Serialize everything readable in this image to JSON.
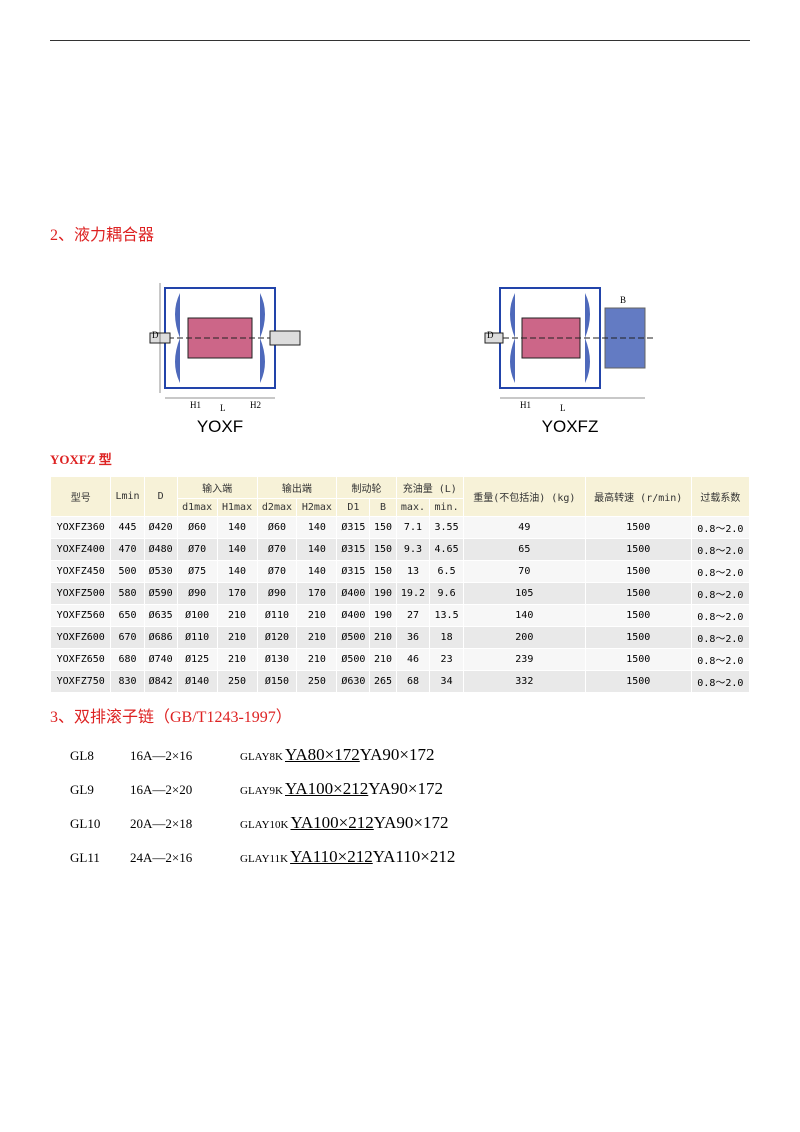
{
  "section2": {
    "title": "2、液力耦合器",
    "diagrams": {
      "left_label": "YOXF",
      "right_label": "YOXFZ",
      "colors": {
        "outline": "#2244aa",
        "inner": "#cc6688",
        "line": "#222"
      }
    },
    "sub_label": "YOXFZ 型",
    "table": {
      "headers": {
        "model": "型号",
        "lmin": "Lmin",
        "d": "D",
        "input": "输入端",
        "output": "输出端",
        "brake": "制动轮",
        "oil": "充油量 (L)",
        "weight": "重量(不包括油) (kg)",
        "speed": "最高转速 (r/min)",
        "overload": "过载系数",
        "d1max": "d1max",
        "H1max": "H1max",
        "d2max": "d2max",
        "H2max": "H2max",
        "D1": "D1",
        "B": "B",
        "oilmax": "max.",
        "oilmin": "min."
      },
      "rows": [
        {
          "m": "YOXFZ360",
          "l": "445",
          "d": "Ø420",
          "d1": "Ø60",
          "h1": "140",
          "d2": "Ø60",
          "h2": "140",
          "D1": "Ø315",
          "B": "150",
          "omax": "7.1",
          "omin": "3.55",
          "kg": "49",
          "sp": "1500",
          "ov": "0.8～2.0"
        },
        {
          "m": "YOXFZ400",
          "l": "470",
          "d": "Ø480",
          "d1": "Ø70",
          "h1": "140",
          "d2": "Ø70",
          "h2": "140",
          "D1": "Ø315",
          "B": "150",
          "omax": "9.3",
          "omin": "4.65",
          "kg": "65",
          "sp": "1500",
          "ov": "0.8～2.0"
        },
        {
          "m": "YOXFZ450",
          "l": "500",
          "d": "Ø530",
          "d1": "Ø75",
          "h1": "140",
          "d2": "Ø70",
          "h2": "140",
          "D1": "Ø315",
          "B": "150",
          "omax": "13",
          "omin": "6.5",
          "kg": "70",
          "sp": "1500",
          "ov": "0.8～2.0"
        },
        {
          "m": "YOXFZ500",
          "l": "580",
          "d": "Ø590",
          "d1": "Ø90",
          "h1": "170",
          "d2": "Ø90",
          "h2": "170",
          "D1": "Ø400",
          "B": "190",
          "omax": "19.2",
          "omin": "9.6",
          "kg": "105",
          "sp": "1500",
          "ov": "0.8～2.0"
        },
        {
          "m": "YOXFZ560",
          "l": "650",
          "d": "Ø635",
          "d1": "Ø100",
          "h1": "210",
          "d2": "Ø110",
          "h2": "210",
          "D1": "Ø400",
          "B": "190",
          "omax": "27",
          "omin": "13.5",
          "kg": "140",
          "sp": "1500",
          "ov": "0.8～2.0"
        },
        {
          "m": "YOXFZ600",
          "l": "670",
          "d": "Ø686",
          "d1": "Ø110",
          "h1": "210",
          "d2": "Ø120",
          "h2": "210",
          "D1": "Ø500",
          "B": "210",
          "omax": "36",
          "omin": "18",
          "kg": "200",
          "sp": "1500",
          "ov": "0.8～2.0"
        },
        {
          "m": "YOXFZ650",
          "l": "680",
          "d": "Ø740",
          "d1": "Ø125",
          "h1": "210",
          "d2": "Ø130",
          "h2": "210",
          "D1": "Ø500",
          "B": "210",
          "omax": "46",
          "omin": "23",
          "kg": "239",
          "sp": "1500",
          "ov": "0.8～2.0"
        },
        {
          "m": "YOXFZ750",
          "l": "830",
          "d": "Ø842",
          "d1": "Ø140",
          "h1": "250",
          "d2": "Ø150",
          "h2": "250",
          "D1": "Ø630",
          "B": "265",
          "omax": "68",
          "omin": "34",
          "kg": "332",
          "sp": "1500",
          "ov": "0.8～2.0"
        }
      ]
    }
  },
  "section3": {
    "title": "3、双排滚子链（GB/T1243-1997）",
    "rows": [
      {
        "code": "GL8",
        "spec": "16A—2×16",
        "glay": "GLAY8K",
        "ya1": "YA80×172",
        "ya2": "YA90×172",
        "u1": true
      },
      {
        "code": "GL9",
        "spec": "16A—2×20",
        "glay": "GLAY9K",
        "ya1": "YA100×212",
        "ya2": "YA90×172",
        "u1": true
      },
      {
        "code": "GL10",
        "spec": "20A—2×18",
        "glay": "GLAY10K",
        "ya1": "YA100×212",
        "ya2": "YA90×172",
        "u1": true
      },
      {
        "code": "GL11",
        "spec": "24A—2×16",
        "glay": "GLAY11K",
        "ya1": "YA110×212",
        "ya2": "YA110×212",
        "u1": true
      }
    ]
  }
}
